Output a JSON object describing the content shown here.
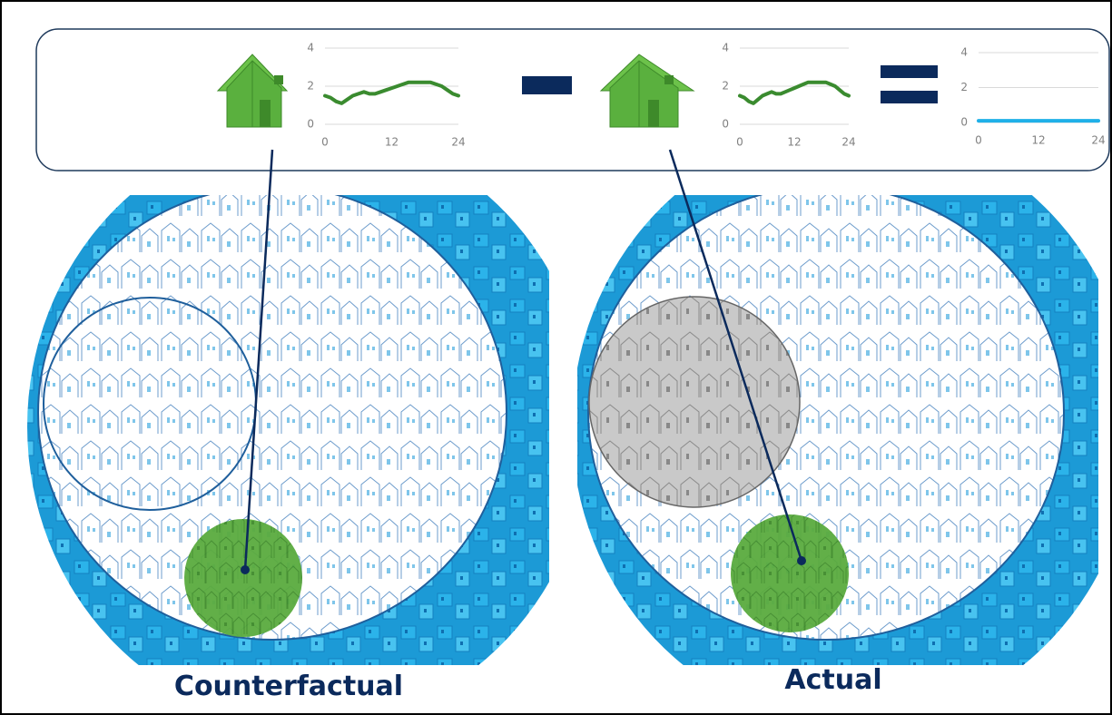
{
  "charts": [
    {
      "color": "#3a8b2f",
      "xlim": [
        0,
        24
      ],
      "ylim": [
        0,
        4
      ],
      "xticks": [
        0,
        12,
        24
      ],
      "yticks": [
        0,
        2,
        4
      ],
      "x": [
        0,
        1,
        2,
        3,
        4,
        5,
        6,
        7,
        8,
        9,
        10,
        11,
        12,
        13,
        14,
        15,
        16,
        17,
        18,
        19,
        20,
        21,
        22,
        23,
        24
      ],
      "values": [
        1.5,
        1.4,
        1.2,
        1.1,
        1.3,
        1.5,
        1.6,
        1.7,
        1.6,
        1.6,
        1.7,
        1.8,
        1.9,
        2.0,
        2.1,
        2.2,
        2.2,
        2.2,
        2.2,
        2.2,
        2.1,
        2.0,
        1.8,
        1.6,
        1.5
      ]
    },
    {
      "color": "#3a8b2f",
      "xlim": [
        0,
        24
      ],
      "ylim": [
        0,
        4
      ],
      "xticks": [
        0,
        12,
        24
      ],
      "yticks": [
        0,
        2,
        4
      ],
      "x": [
        0,
        1,
        2,
        3,
        4,
        5,
        6,
        7,
        8,
        9,
        10,
        11,
        12,
        13,
        14,
        15,
        16,
        17,
        18,
        19,
        20,
        21,
        22,
        23,
        24
      ],
      "values": [
        1.5,
        1.4,
        1.2,
        1.1,
        1.3,
        1.5,
        1.6,
        1.7,
        1.6,
        1.6,
        1.7,
        1.8,
        1.9,
        2.0,
        2.1,
        2.2,
        2.2,
        2.2,
        2.2,
        2.2,
        2.1,
        2.0,
        1.8,
        1.6,
        1.5
      ]
    },
    {
      "color": "#1fb0e8",
      "xlim": [
        0,
        24
      ],
      "ylim": [
        0,
        4
      ],
      "xticks": [
        0,
        12,
        24
      ],
      "yticks": [
        0,
        2,
        4
      ],
      "x": [
        0,
        24
      ],
      "values": [
        0.1,
        0.1
      ]
    }
  ],
  "panels": [
    {
      "label": "Counterfactual"
    },
    {
      "label": "Actual"
    }
  ]
}
